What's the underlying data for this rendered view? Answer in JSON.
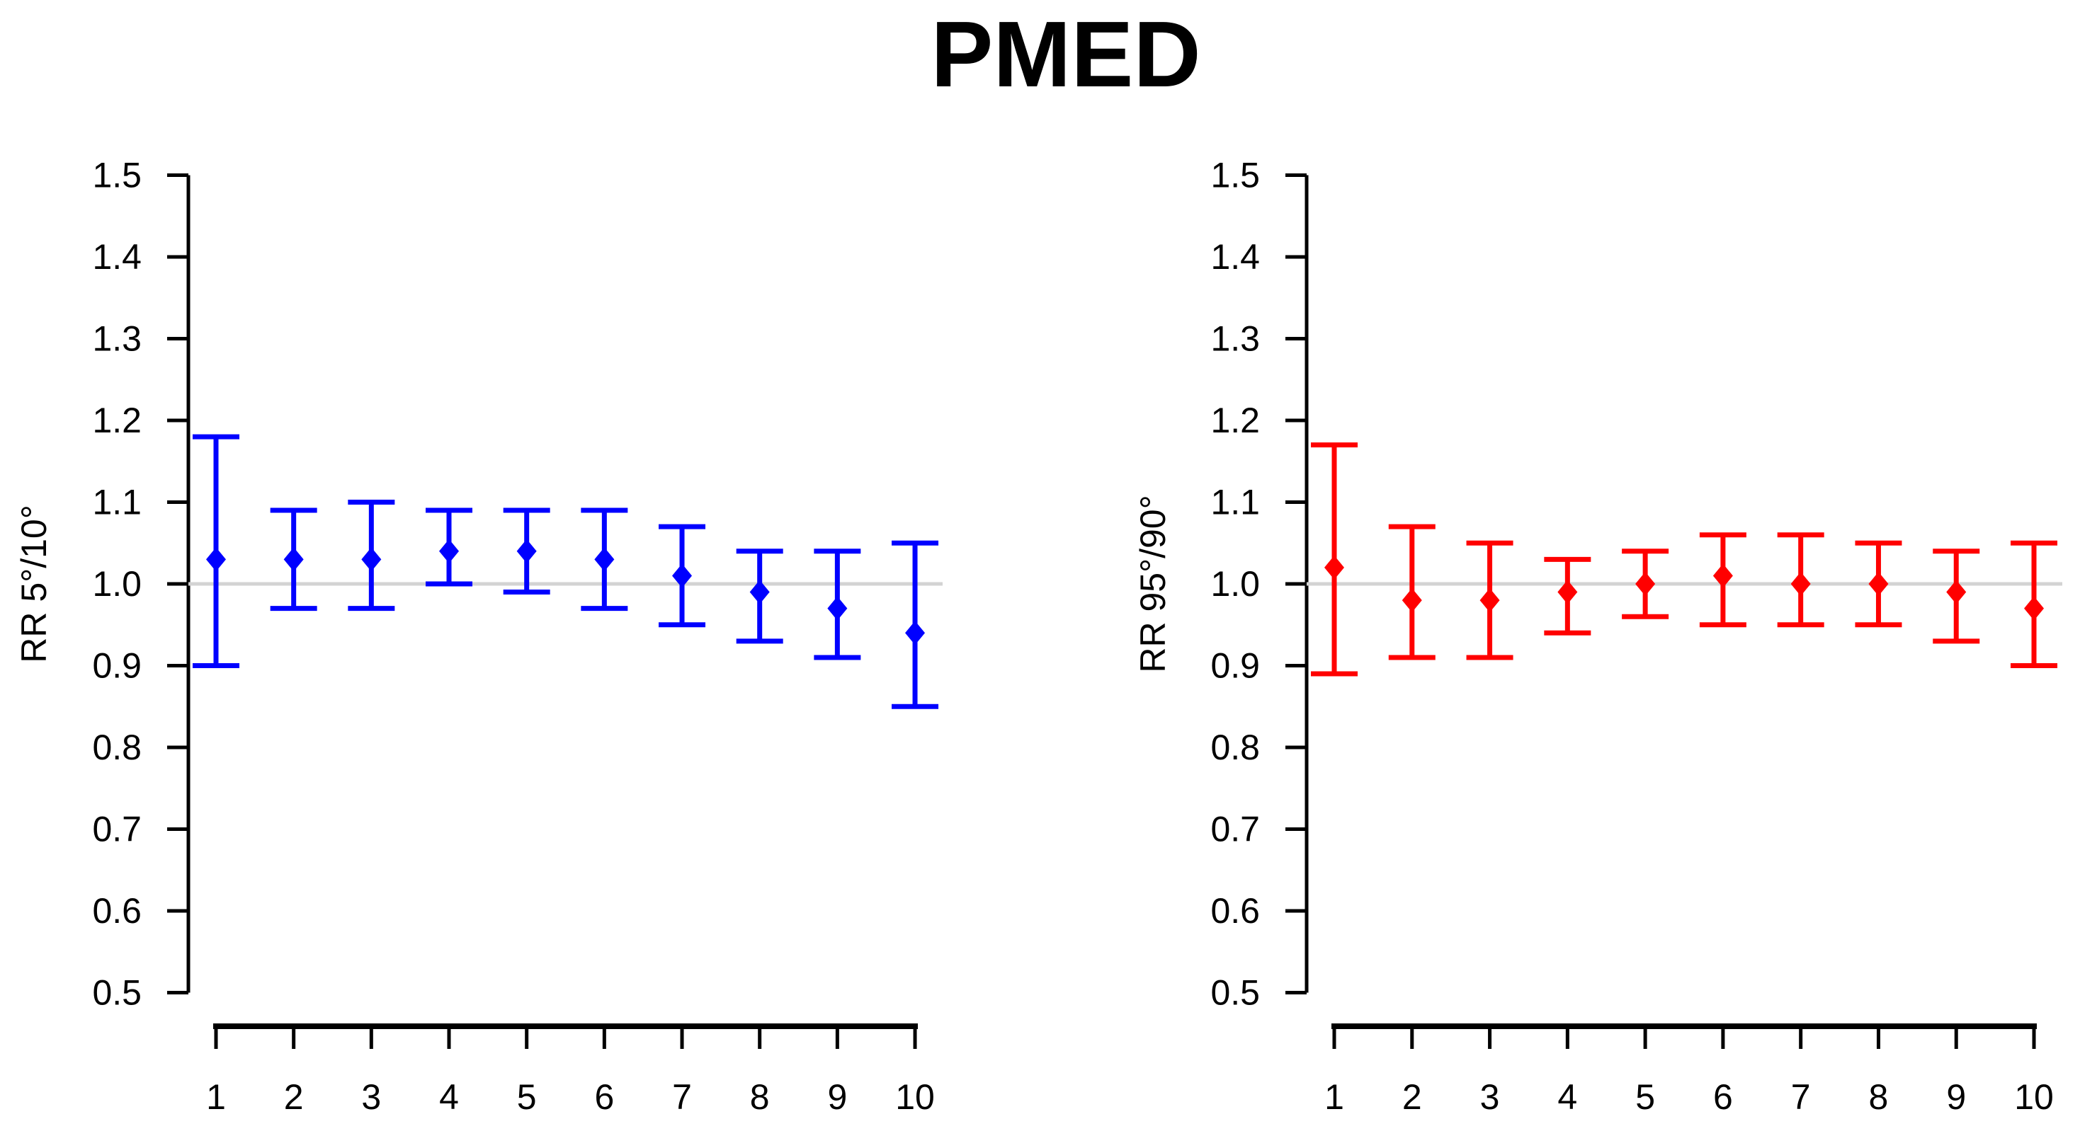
{
  "title": "PMED",
  "colors": {
    "left_series": "#0000ff",
    "right_series": "#ff0000",
    "reference_line": "#d3d3d3",
    "axis": "#000000",
    "background": "#ffffff"
  },
  "chart_data": [
    {
      "type": "scatter",
      "panel": "left",
      "title": "PMED",
      "xlabel": "",
      "ylabel": "RR 5°/10°",
      "marker": "diamond",
      "error_bars": true,
      "grid": false,
      "legend": "none",
      "color": "#0000ff",
      "reference_line_y": 1.0,
      "ylim": [
        0.5,
        1.5
      ],
      "xlim": [
        1,
        10
      ],
      "x": [
        1,
        2,
        3,
        4,
        5,
        6,
        7,
        8,
        9,
        10
      ],
      "xtick_labels": [
        "1",
        "2",
        "3",
        "4",
        "5",
        "6",
        "7",
        "8",
        "9",
        "10"
      ],
      "yticks": [
        0.5,
        0.6,
        0.7,
        0.8,
        0.9,
        1.0,
        1.1,
        1.2,
        1.3,
        1.4,
        1.5
      ],
      "ytick_labels": [
        "0.5",
        "0.6",
        "0.7",
        "0.8",
        "0.9",
        "1.0",
        "1.1",
        "1.2",
        "1.3",
        "1.4",
        "1.5"
      ],
      "center": [
        1.03,
        1.03,
        1.03,
        1.04,
        1.04,
        1.03,
        1.01,
        0.99,
        0.97,
        0.94
      ],
      "lower": [
        0.9,
        0.97,
        0.97,
        1.0,
        0.99,
        0.97,
        0.95,
        0.93,
        0.91,
        0.85
      ],
      "upper": [
        1.18,
        1.09,
        1.1,
        1.09,
        1.09,
        1.09,
        1.07,
        1.04,
        1.04,
        1.05
      ]
    },
    {
      "type": "scatter",
      "panel": "right",
      "title": "PMED",
      "xlabel": "",
      "ylabel": "RR 95°/90°",
      "marker": "diamond",
      "error_bars": true,
      "grid": false,
      "legend": "none",
      "color": "#ff0000",
      "reference_line_y": 1.0,
      "ylim": [
        0.5,
        1.5
      ],
      "xlim": [
        1,
        10
      ],
      "x": [
        1,
        2,
        3,
        4,
        5,
        6,
        7,
        8,
        9,
        10
      ],
      "xtick_labels": [
        "1",
        "2",
        "3",
        "4",
        "5",
        "6",
        "7",
        "8",
        "9",
        "10"
      ],
      "yticks": [
        0.5,
        0.6,
        0.7,
        0.8,
        0.9,
        1.0,
        1.1,
        1.2,
        1.3,
        1.4,
        1.5
      ],
      "ytick_labels": [
        "0.5",
        "0.6",
        "0.7",
        "0.8",
        "0.9",
        "1.0",
        "1.1",
        "1.2",
        "1.3",
        "1.4",
        "1.5"
      ],
      "center": [
        1.02,
        0.98,
        0.98,
        0.99,
        1.0,
        1.01,
        1.0,
        1.0,
        0.99,
        0.97
      ],
      "lower": [
        0.89,
        0.91,
        0.91,
        0.94,
        0.96,
        0.95,
        0.95,
        0.95,
        0.93,
        0.9
      ],
      "upper": [
        1.17,
        1.07,
        1.05,
        1.03,
        1.04,
        1.06,
        1.06,
        1.05,
        1.04,
        1.05
      ]
    }
  ]
}
